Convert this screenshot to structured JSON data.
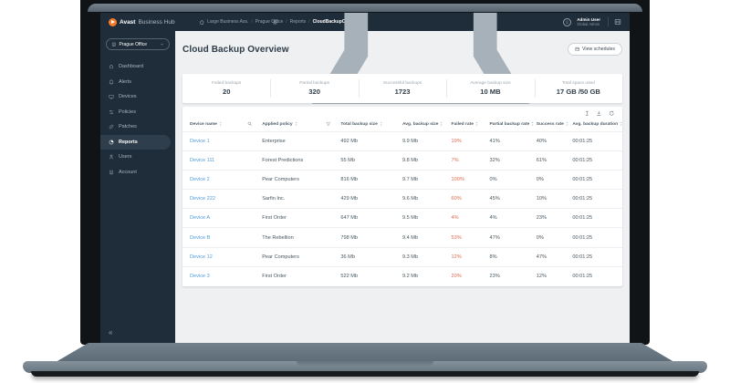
{
  "colors": {
    "brand_navy": "#1f2c39",
    "accent_orange": "#f57a29",
    "link_blue": "#4f9cd9",
    "failed_red": "#dc6a4c",
    "selected_nav_bg": "#2f3e4c",
    "content_bg": "#eef0f2"
  },
  "topbar": {
    "brand_bold": "Avast",
    "brand_rest": "Business Hub",
    "breadcrumb": [
      "Large Business Ass.",
      "Prague Office",
      "Reports",
      "CloudBackupOverview"
    ],
    "user": {
      "name": "Admin User",
      "role": "Global Admin"
    },
    "right_icons": [
      "gear-icon",
      "notifications-icon",
      "avatar",
      "product-switcher-icon"
    ]
  },
  "sidebar": {
    "org_selector": {
      "label": "Prague Office",
      "icon": "building-icon"
    },
    "items": [
      {
        "label": "Dashboard",
        "icon": "home-icon",
        "selected": false
      },
      {
        "label": "Alerts",
        "icon": "bell-icon",
        "selected": false
      },
      {
        "label": "Devices",
        "icon": "monitor-icon",
        "selected": false
      },
      {
        "label": "Policies",
        "icon": "sliders-icon",
        "selected": false
      },
      {
        "label": "Patches",
        "icon": "bandage-icon",
        "selected": false
      },
      {
        "label": "Reports",
        "icon": "pie-chart-icon",
        "selected": true
      },
      {
        "label": "Users",
        "icon": "person-icon",
        "selected": false
      },
      {
        "label": "Account",
        "icon": "building-icon",
        "selected": false
      }
    ],
    "collapse_glyph": "«"
  },
  "main": {
    "title": "Cloud Backup Overview",
    "view_schedules": {
      "label": "View schedules",
      "icon": "calendar-icon"
    },
    "stats": [
      {
        "label": "Failed backups",
        "value": "20"
      },
      {
        "label": "Partial backups",
        "value": "320"
      },
      {
        "label": "Successful backups",
        "value": "1723"
      },
      {
        "label": "Average backup size",
        "value": "10 MB"
      },
      {
        "label": "Total space used",
        "value": "17 GB /50 GB"
      }
    ],
    "table": {
      "tools": [
        "column-settings-icon",
        "export-icon",
        "refresh-icon"
      ],
      "columns": [
        {
          "label": "Device name",
          "extra_icon": "search-icon"
        },
        {
          "label": "Applied policy",
          "extra_icon": "filter-icon"
        },
        {
          "label": "Total backup size"
        },
        {
          "label": "Avg. backup size"
        },
        {
          "label": "Failed rate"
        },
        {
          "label": "Partial backup rate"
        },
        {
          "label": "Success rate"
        },
        {
          "label": "Avg. backup duration"
        }
      ],
      "rows": [
        {
          "device": "Device 1",
          "policy": "Enterprise",
          "total_size": "492 Mb",
          "avg_size": "9.9 Mb",
          "failed_rate": "19%",
          "partial_rate": "41%",
          "success_rate": "40%",
          "avg_duration": "00:01:25"
        },
        {
          "device": "Device 111",
          "policy": "Forest Predictions",
          "total_size": "55 Mb",
          "avg_size": "9.8 Mb",
          "failed_rate": "7%",
          "partial_rate": "32%",
          "success_rate": "61%",
          "avg_duration": "00:01:25"
        },
        {
          "device": "Device 2",
          "policy": "Pear Computers",
          "total_size": "816 Mb",
          "avg_size": "9.7 Mb",
          "failed_rate": "100%",
          "partial_rate": "0%",
          "success_rate": "0%",
          "avg_duration": "00:01:25"
        },
        {
          "device": "Device 222",
          "policy": "Sarfin Inc.",
          "total_size": "429 Mb",
          "avg_size": "9.6 Mb",
          "failed_rate": "60%",
          "partial_rate": "45%",
          "success_rate": "10%",
          "avg_duration": "00:01:25"
        },
        {
          "device": "Device A",
          "policy": "First Order",
          "total_size": "647 Mb",
          "avg_size": "9.5 Mb",
          "failed_rate": "4%",
          "partial_rate": "4%",
          "success_rate": "23%",
          "avg_duration": "00:01:25"
        },
        {
          "device": "Device B",
          "policy": "The Rebellion",
          "total_size": "798 Mb",
          "avg_size": "9.4 Mb",
          "failed_rate": "53%",
          "partial_rate": "47%",
          "success_rate": "0%",
          "avg_duration": "00:01:25"
        },
        {
          "device": "Device 12",
          "policy": "Pear Computers",
          "total_size": "36 Mb",
          "avg_size": "9.3 Mb",
          "failed_rate": "12%",
          "partial_rate": "8%",
          "success_rate": "47%",
          "avg_duration": "00:01:25"
        },
        {
          "device": "Device 3",
          "policy": "First Order",
          "total_size": "522 Mb",
          "avg_size": "9.2 Mb",
          "failed_rate": "20%",
          "partial_rate": "23%",
          "success_rate": "12%",
          "avg_duration": "00:01:25"
        }
      ]
    }
  }
}
